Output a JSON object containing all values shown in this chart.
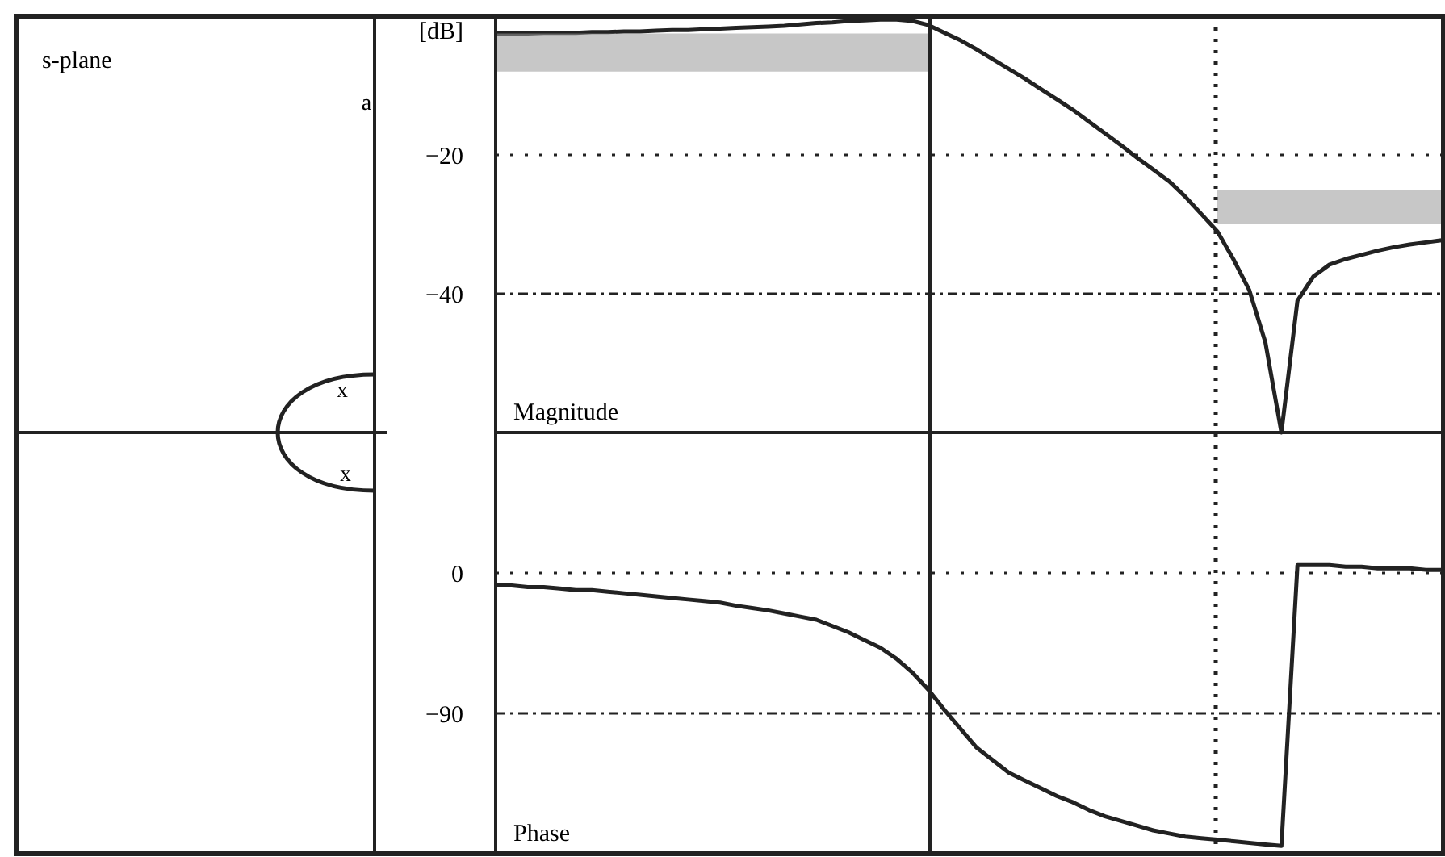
{
  "chart_data": [
    {
      "type": "other",
      "title": "s-plane",
      "annotations": [
        "a",
        "x",
        "x"
      ]
    },
    {
      "type": "line",
      "title": "Magnitude",
      "ylabel": "[dB]",
      "categories": [
        null,
        null,
        null,
        null,
        null,
        null,
        null,
        null,
        null,
        null,
        null,
        null,
        null,
        null,
        null,
        null,
        null,
        null,
        null,
        null,
        null,
        null,
        null,
        null,
        null,
        null,
        null,
        null,
        null,
        null,
        null,
        null,
        null,
        null,
        null,
        null,
        null,
        null,
        null,
        null,
        null,
        null,
        null,
        null,
        null,
        null,
        null,
        null,
        null,
        null,
        null,
        null,
        null,
        null,
        null,
        null,
        null,
        null,
        null,
        null
      ],
      "ylim": [
        -60,
        0
      ],
      "yticks": [
        -20,
        -40
      ],
      "grid": "y",
      "tick_labels": "y",
      "line_style": "solid",
      "marker": "none",
      "series": [
        {
          "color": "#222222",
          "values": [
            -2.5,
            -2.5,
            -2.5,
            -2.4,
            -2.4,
            -2.4,
            -2.3,
            -2.3,
            -2.2,
            -2.2,
            -2.1,
            -2.0,
            -2.0,
            -1.9,
            -1.8,
            -1.7,
            -1.6,
            -1.5,
            -1.4,
            -1.2,
            -1.0,
            -0.9,
            -0.7,
            -0.6,
            -0.5,
            -0.5,
            -0.7,
            -1.3,
            -2.4,
            -3.5,
            -4.8,
            -6.2,
            -7.6,
            -9.0,
            -10.5,
            -12.0,
            -13.5,
            -15.2,
            -16.9,
            -18.6,
            -20.4,
            -22.1,
            -23.8,
            -26.0,
            -28.5,
            -31.0,
            -35.0,
            -39.5,
            -47.0,
            -60.0,
            -41.0,
            -37.5,
            -35.8,
            -35.0,
            -34.4,
            -33.8,
            -33.3,
            -32.9,
            -32.6,
            -32.3
          ]
        },
        {
          "color": "#999999",
          "values": [
            null,
            null,
            null,
            null,
            null,
            null,
            null,
            null,
            null,
            null,
            null,
            null,
            null,
            null,
            null,
            null,
            null,
            null,
            null,
            null,
            null,
            null,
            null,
            null,
            null,
            null,
            null,
            null,
            null,
            null,
            null,
            null,
            null,
            null,
            null,
            null,
            null,
            null,
            null,
            null,
            null,
            null,
            null,
            null,
            null,
            null,
            null,
            null,
            null,
            null,
            null,
            null,
            null,
            null,
            null,
            null,
            null,
            null,
            null,
            null
          ],
          "lower": [
            -8,
            -8,
            -8,
            -8,
            -8,
            -8,
            -8,
            -8,
            -8,
            -8,
            -8,
            -8,
            -8,
            -8,
            -8,
            -8,
            -8,
            -8,
            -8,
            -8,
            -8,
            -8,
            -8,
            -8,
            -8,
            -8,
            -8,
            -8,
            null,
            null,
            null,
            null,
            null,
            null,
            null,
            null,
            null,
            null,
            null,
            null,
            null,
            null,
            null,
            null,
            null,
            null,
            null,
            null,
            null,
            null,
            null,
            null,
            null,
            null,
            null,
            null,
            null,
            null,
            null,
            null
          ],
          "upper": [
            -2.5,
            -2.5,
            -2.5,
            -2.5,
            -2.5,
            -2.5,
            -2.5,
            -2.5,
            -2.5,
            -2.5,
            -2.5,
            -2.5,
            -2.5,
            -2.5,
            -2.5,
            -2.5,
            -2.5,
            -2.5,
            -2.5,
            -2.5,
            -2.5,
            -2.5,
            -2.5,
            -2.5,
            -2.5,
            -2.5,
            -2.5,
            -2.5,
            null,
            null,
            null,
            null,
            null,
            null,
            null,
            null,
            null,
            null,
            null,
            null,
            null,
            null,
            null,
            null,
            null,
            null,
            null,
            null,
            null,
            null,
            null,
            null,
            null,
            null,
            null,
            null,
            null,
            null,
            null,
            null
          ]
        },
        {
          "color": "#999999",
          "values": [
            null,
            null,
            null,
            null,
            null,
            null,
            null,
            null,
            null,
            null,
            null,
            null,
            null,
            null,
            null,
            null,
            null,
            null,
            null,
            null,
            null,
            null,
            null,
            null,
            null,
            null,
            null,
            null,
            null,
            null,
            null,
            null,
            null,
            null,
            null,
            null,
            null,
            null,
            null,
            null,
            null,
            null,
            null,
            null,
            null,
            null,
            null,
            null,
            null,
            null,
            null,
            null,
            null,
            null,
            null,
            null,
            null,
            null,
            null,
            null
          ],
          "lower": [
            null,
            null,
            null,
            null,
            null,
            null,
            null,
            null,
            null,
            null,
            null,
            null,
            null,
            null,
            null,
            null,
            null,
            null,
            null,
            null,
            null,
            null,
            null,
            null,
            null,
            null,
            null,
            null,
            null,
            null,
            null,
            null,
            null,
            null,
            null,
            null,
            null,
            null,
            null,
            null,
            null,
            null,
            null,
            null,
            null,
            -30,
            -30,
            -30,
            -30,
            -30,
            -30,
            -30,
            -30,
            -30,
            -30,
            -30,
            -30,
            -30,
            -30,
            -30
          ],
          "upper": [
            null,
            null,
            null,
            null,
            null,
            null,
            null,
            null,
            null,
            null,
            null,
            null,
            null,
            null,
            null,
            null,
            null,
            null,
            null,
            null,
            null,
            null,
            null,
            null,
            null,
            null,
            null,
            null,
            null,
            null,
            null,
            null,
            null,
            null,
            null,
            null,
            null,
            null,
            null,
            null,
            null,
            null,
            null,
            null,
            null,
            -25,
            -25,
            -25,
            -25,
            -25,
            -25,
            -25,
            -25,
            -25,
            -25,
            -25,
            -25,
            -25,
            -25,
            -25
          ]
        }
      ]
    },
    {
      "type": "line",
      "title": "Phase",
      "categories": [
        null,
        null,
        null,
        null,
        null,
        null,
        null,
        null,
        null,
        null,
        null,
        null,
        null,
        null,
        null,
        null,
        null,
        null,
        null,
        null,
        null,
        null,
        null,
        null,
        null,
        null,
        null,
        null,
        null,
        null,
        null,
        null,
        null,
        null,
        null,
        null,
        null,
        null,
        null,
        null,
        null,
        null,
        null,
        null,
        null,
        null,
        null,
        null,
        null,
        null,
        null,
        null,
        null,
        null,
        null,
        null,
        null,
        null,
        null,
        null
      ],
      "ylim": [
        -180,
        90
      ],
      "yticks": [
        0,
        -90
      ],
      "grid": "y",
      "tick_labels": "y",
      "line_style": "solid",
      "marker": "none",
      "series": [
        {
          "color": "#222222",
          "values": [
            -8,
            -8,
            -9,
            -9,
            -10,
            -11,
            -11,
            -12,
            -13,
            -14,
            -15,
            -16,
            -17,
            -18,
            -19,
            -21,
            -22.5,
            -24,
            -26,
            -28,
            -30,
            -34,
            -38,
            -43,
            -48,
            -55,
            -64,
            -75,
            -88,
            -100,
            -112,
            -120,
            -128,
            -133,
            -138,
            -143,
            -147,
            -152,
            -156,
            -159,
            -162,
            -165,
            -167,
            -169,
            -170,
            -171,
            -172,
            -173,
            -174,
            -175,
            5,
            5,
            5,
            4,
            4,
            3,
            3,
            3,
            2,
            2
          ]
        }
      ]
    }
  ]
}
